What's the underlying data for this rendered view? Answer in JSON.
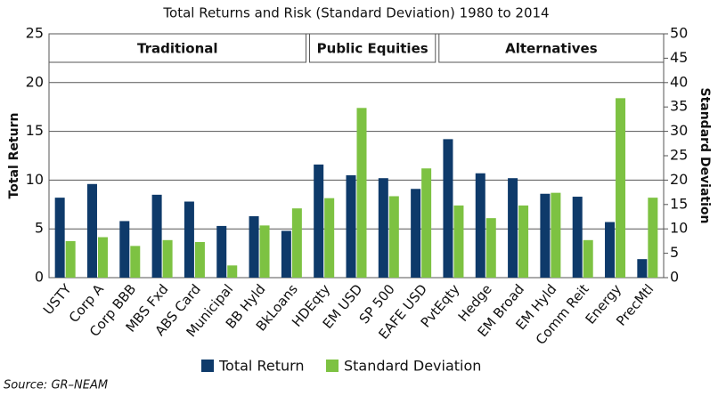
{
  "chart_data": {
    "type": "bar",
    "title": "Total Returns and Risk (Standard Deviation) 1980 to 2014",
    "y_label": "Total Return",
    "y2_label": "Standard Deviation",
    "source": "Source: GR–NEAM",
    "groups": [
      "Traditional",
      "Public Equities",
      "Alternatives"
    ],
    "categories": [
      "USTY",
      "Corp A",
      "Corp BBB",
      "MBS Fxd",
      "ABS Card",
      "Municipal",
      "BB Hyld",
      "BkLoans",
      "HDEqty",
      "EM USD",
      "SP 500",
      "EAFE USD",
      "PvtEqty",
      "Hedge",
      "EM Broad",
      "EM Hyld",
      "Comm Reit",
      "Energy",
      "PrecMtl"
    ],
    "series": [
      {
        "name": "Total Return",
        "color": "#0e3a6a",
        "values": [
          8.2,
          9.6,
          5.8,
          8.5,
          7.8,
          5.3,
          6.3,
          4.8,
          11.6,
          10.5,
          10.2,
          9.1,
          14.2,
          10.7,
          10.2,
          8.6,
          8.3,
          5.7,
          1.9
        ]
      },
      {
        "name": "Standard Deviation",
        "color": "#7dc242",
        "axis": "y2",
        "values": [
          7.5,
          8.3,
          6.5,
          7.7,
          7.3,
          2.5,
          10.7,
          14.2,
          16.3,
          34.8,
          16.7,
          22.4,
          14.8,
          12.2,
          14.8,
          17.4,
          7.7,
          36.8,
          16.4
        ]
      }
    ],
    "ylim": [
      0,
      25
    ],
    "yticks": [
      0,
      5,
      10,
      15,
      20,
      25
    ],
    "y2lim": [
      0,
      50
    ],
    "y2ticks": [
      0,
      5,
      10,
      15,
      20,
      25,
      30,
      35,
      40,
      45,
      50
    ],
    "grid": true
  }
}
